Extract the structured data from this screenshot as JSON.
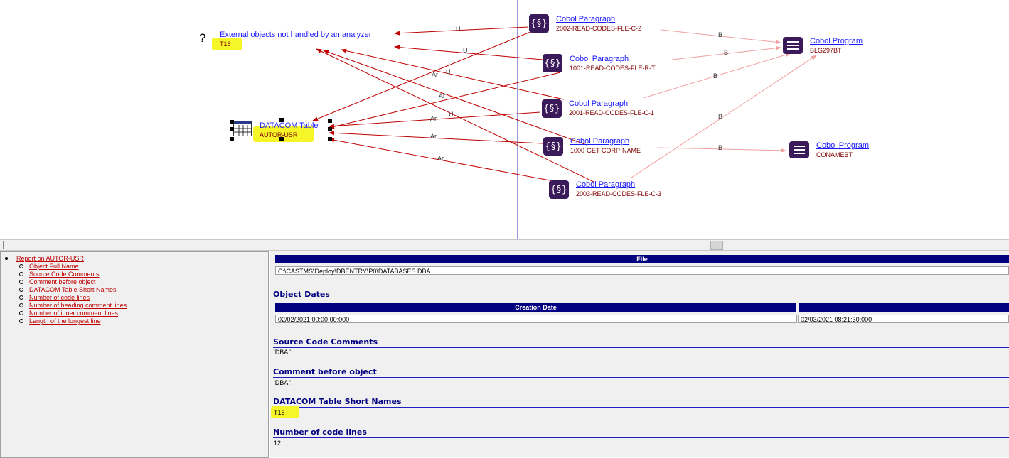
{
  "graph": {
    "external": {
      "icon": "?",
      "title": "External objects not handled by an analyzer",
      "sub": "T16"
    },
    "datacom": {
      "title": "DATACOM Table",
      "sub": "AUTOR-USR"
    },
    "paragraph_icon": "{§}",
    "paragraphs": [
      {
        "title": "Cobol Paragraph",
        "sub": "2002-READ-CODES-FLE-C-2"
      },
      {
        "title": "Cobol Paragraph",
        "sub": "1001-READ-CODES-FLE-R-T"
      },
      {
        "title": "Cobol Paragraph",
        "sub": "2001-READ-CODES-FLE-C-1"
      },
      {
        "title": "Cobol Paragraph",
        "sub": "1000-GET-CORP-NAME"
      },
      {
        "title": "Cobol Paragraph",
        "sub": "2003-READ-CODES-FLE-C-3"
      }
    ],
    "programs": [
      {
        "title": "Cobol Program",
        "sub": "BLG297BT"
      },
      {
        "title": "Cobol Program",
        "sub": "CONAMEBT"
      }
    ],
    "edge_labels": [
      "U",
      "U",
      "Ar",
      "U",
      "Ar",
      "Ar",
      "U",
      "Ar",
      "Ar",
      "B",
      "B",
      "B",
      "B",
      "B"
    ],
    "colors": {
      "edge": "#c00000",
      "call_edge": "#f0a0a0",
      "node_icon": "#3b1a5a",
      "highlight": "#f5f528",
      "divider": "#3030c0"
    }
  },
  "toc": {
    "top": "Report on AUTOR-USR",
    "items": [
      "Object Full Name",
      "Source Code Comments",
      "Comment before object",
      "DATACOM Table Short Names",
      "Number of code lines",
      "Number of heading comment lines",
      "Number of inner comment lines",
      "Length of the longest line"
    ]
  },
  "report": {
    "file_header": "File",
    "file_value": "C:\\CASTMS\\Deploy\\DBENTRY\\P0\\DATABASES.DBA",
    "dates_title": "Object Dates",
    "creation_header": "Creation Date",
    "creation_value": "02/02/2021 00:00:00:000",
    "modified_value": "02/03/2021 08:21:30:000",
    "src_comments_title": "Source Code Comments",
    "src_comments_value": "'DBA ',",
    "comment_before_title": "Comment before object",
    "comment_before_value": "'DBA ',",
    "short_names_title": "DATACOM Table Short Names",
    "short_names_value": "T16",
    "code_lines_title": "Number of code lines",
    "code_lines_value": "12"
  }
}
